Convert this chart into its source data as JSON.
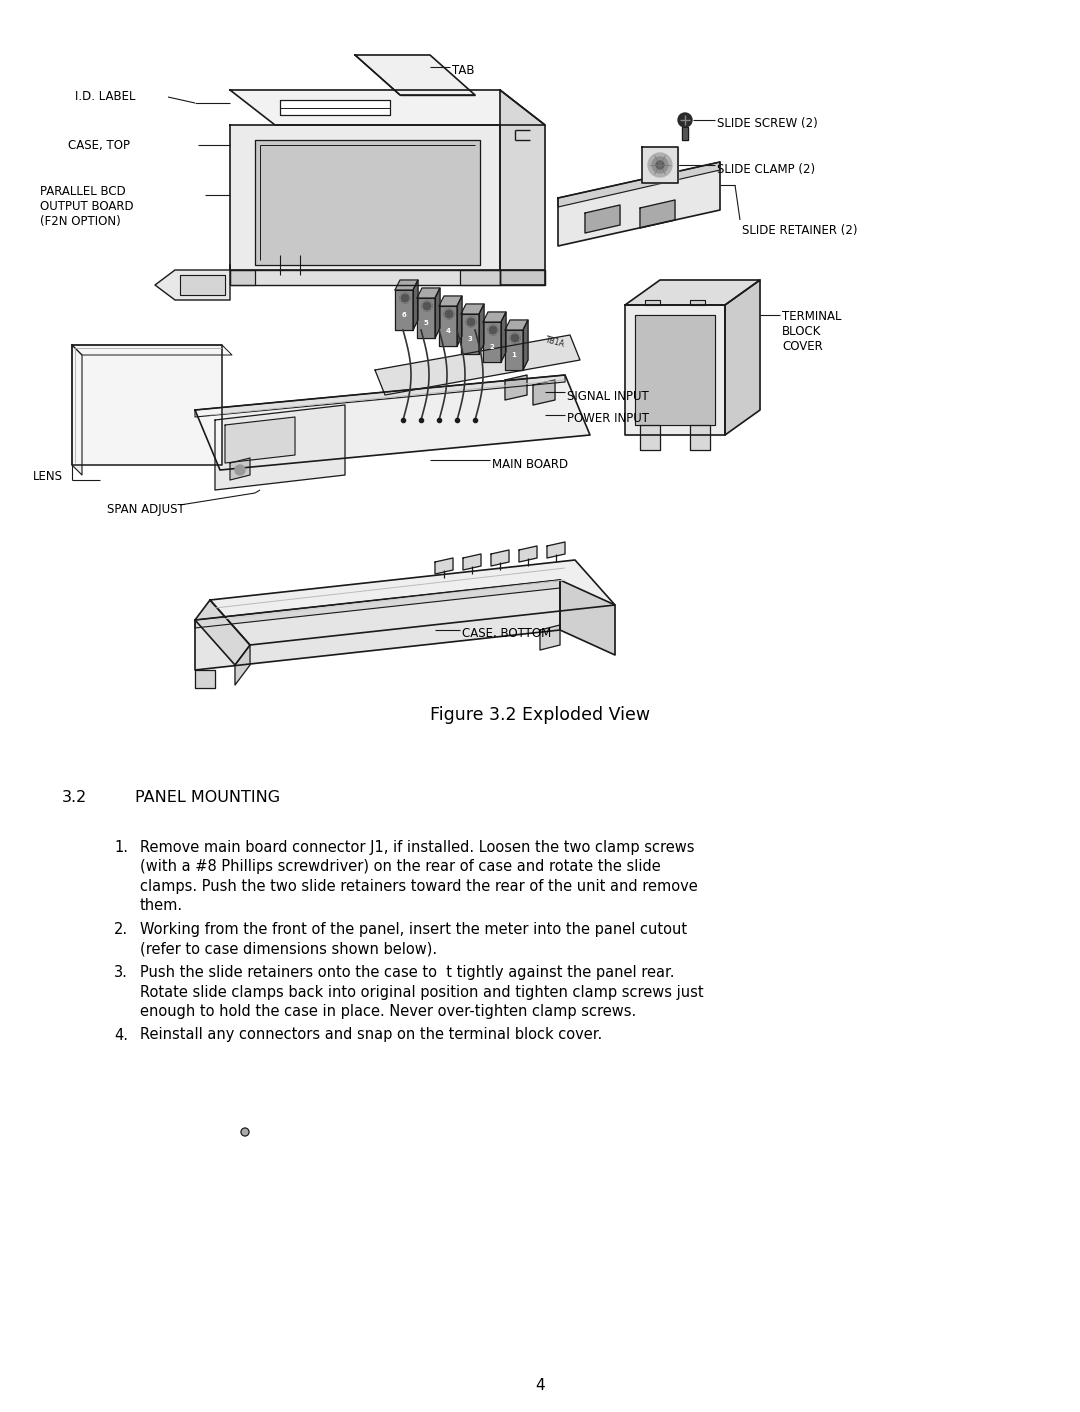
{
  "figure_caption": "Figure 3.2 Exploded View",
  "section_num": "3.2",
  "section_title": "PANEL MOUNTING",
  "items": [
    [
      "1.",
      "Remove main board connector J1, if installed. Loosen the two clamp screws",
      "(with a #8 Phillips screwdriver) on the rear of case and rotate the slide",
      "clamps. Push the two slide retainers toward the rear of the unit and remove",
      "them."
    ],
    [
      "2.",
      "Working from the front of the panel, insert the meter into the panel cutout",
      "(refer to case dimensions shown below)."
    ],
    [
      "3.",
      "Push the slide retainers onto the case to  t tightly against the panel rear.",
      "Rotate slide clamps back into original position and tighten clamp screws just",
      "enough to hold the case in place. Never over-tighten clamp screws."
    ],
    [
      "4.",
      "Reinstall any connectors and snap on the terminal block cover."
    ]
  ],
  "page_number": "4",
  "bg_color": "#ffffff",
  "line_color": "#1a1a1a",
  "text_color": "#000000"
}
